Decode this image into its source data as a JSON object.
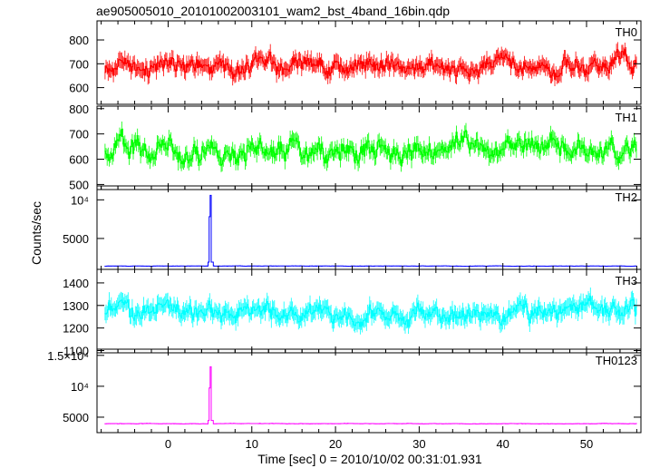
{
  "chart_data": {
    "type": "line",
    "title": "ae905005010_20101002003101_wam2_bst_4band_16bin.qdp",
    "xlabel": "Time [sec] 0 = 2010/10/02 00:31:01.931",
    "ylabel": "Counts/sec",
    "xlim": [
      -8.5,
      56.5
    ],
    "x_ticks": [
      0,
      10,
      20,
      30,
      40,
      50
    ],
    "x_tick_labels": [
      "0",
      "10",
      "20",
      "30",
      "40",
      "50"
    ],
    "error_bars": true,
    "step_plot": true,
    "sample_step": 0.125,
    "panels": [
      {
        "label": "TH0",
        "color": "#ff0000",
        "ylim": [
          530,
          880
        ],
        "y_ticks": [
          600,
          700,
          800
        ],
        "y_tick_labels": [
          "600",
          "700",
          "800"
        ],
        "baseline": 690,
        "noise": 45,
        "error": 30,
        "peaks": []
      },
      {
        "label": "TH1",
        "color": "#00ff00",
        "ylim": [
          480,
          810
        ],
        "y_ticks": [
          500,
          600,
          700,
          800
        ],
        "y_tick_labels": [
          "500",
          "600",
          "700",
          "800"
        ],
        "baseline": 640,
        "noise": 50,
        "error": 28,
        "peaks": []
      },
      {
        "label": "TH2",
        "color": "#0000ff",
        "ylim": [
          1000,
          11800
        ],
        "y_ticks": [
          5000,
          10000
        ],
        "y_tick_labels": [
          "5000",
          "10⁴"
        ],
        "baseline": 1430,
        "noise": 25,
        "error": 40,
        "peaks": [
          {
            "x": 5.0,
            "value": 11500
          }
        ]
      },
      {
        "label": "TH3",
        "color": "#00ffff",
        "ylim": [
          1090,
          1460
        ],
        "y_ticks": [
          1100,
          1200,
          1300,
          1400
        ],
        "y_tick_labels": [
          "1100",
          "1200",
          "1300",
          "1400"
        ],
        "baseline": 1270,
        "noise": 45,
        "error": 35,
        "peaks": []
      },
      {
        "label": "TH0123",
        "color": "#ff00ff",
        "ylim": [
          2500,
          16000
        ],
        "y_ticks": [
          5000,
          10000,
          15000
        ],
        "y_tick_labels": [
          "5000",
          "10⁴",
          "1.5×10⁴"
        ],
        "baseline": 3950,
        "noise": 40,
        "error": 60,
        "peaks": [
          {
            "x": 5.0,
            "value": 14300
          }
        ]
      }
    ]
  }
}
